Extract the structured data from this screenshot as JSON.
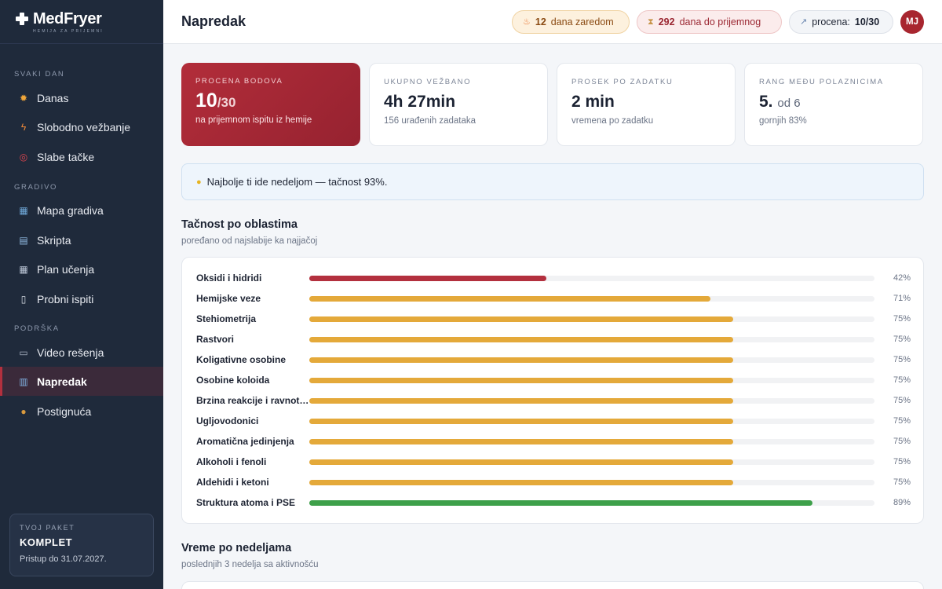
{
  "app": {
    "name": "MedFryer",
    "tagline": "Hemija za prijemni"
  },
  "sidebar": {
    "sections": [
      {
        "label": "Svaki dan",
        "items": [
          {
            "label": "Danas",
            "icon": "sun-icon"
          },
          {
            "label": "Slobodno vežbanje",
            "icon": "lightning-icon"
          },
          {
            "label": "Slabe tačke",
            "icon": "target-icon"
          }
        ]
      },
      {
        "label": "Gradivo",
        "items": [
          {
            "label": "Mapa gradiva",
            "icon": "map-icon"
          },
          {
            "label": "Skripta",
            "icon": "book-icon"
          },
          {
            "label": "Plan učenja",
            "icon": "calendar-icon"
          },
          {
            "label": "Probni ispiti",
            "icon": "document-icon"
          }
        ]
      },
      {
        "label": "Podrška",
        "items": [
          {
            "label": "Video rešenja",
            "icon": "video-icon"
          },
          {
            "label": "Napredak",
            "icon": "chart-icon",
            "active": true
          },
          {
            "label": "Postignuća",
            "icon": "medal-icon"
          }
        ]
      }
    ],
    "package": {
      "label": "Tvoj paket",
      "name": "KOMPLET",
      "access": "Pristup do 31.07.2027."
    }
  },
  "header": {
    "title": "Napredak",
    "streak": {
      "value": "12",
      "label": "dana zaredom"
    },
    "days_left": {
      "value": "292",
      "label": "dana do prijemnog"
    },
    "score": {
      "label": "procena:",
      "value": "10/30"
    },
    "avatar_initials": "MJ"
  },
  "stats": [
    {
      "label": "Procena bodova",
      "value": "10",
      "value_suffix": "/30",
      "sub": "na prijemnom ispitu iz hemije"
    },
    {
      "label": "Ukupno vežbano",
      "value": "4h 27min",
      "value_suffix": "",
      "sub": "156 urađenih zadataka"
    },
    {
      "label": "Prosek po zadatku",
      "value": "2 min",
      "value_suffix": "",
      "sub": "vremena po zadatku"
    },
    {
      "label": "Rang među polaznicima",
      "value": "5.",
      "value_suffix": "od 6",
      "sub": "gornjih 83%"
    }
  ],
  "tip": {
    "text": "Najbolje ti ide nedeljom — tačnost 93%.",
    "icon": "lightbulb-icon"
  },
  "accuracy": {
    "title": "Tačnost po oblastima",
    "subtitle": "poređano od najslabije ka najjačoj",
    "colors": {
      "weak": "#b3303e",
      "medium": "#e4a93a",
      "strong": "#3ea04a"
    },
    "rows": [
      {
        "name": "Oksidi i hidridi",
        "value": 42,
        "label": "42%",
        "level": "weak"
      },
      {
        "name": "Hemijske veze",
        "value": 71,
        "label": "71%",
        "level": "medium"
      },
      {
        "name": "Stehiometrija",
        "value": 75,
        "label": "75%",
        "level": "medium"
      },
      {
        "name": "Rastvori",
        "value": 75,
        "label": "75%",
        "level": "medium"
      },
      {
        "name": "Koligativne osobine",
        "value": 75,
        "label": "75%",
        "level": "medium"
      },
      {
        "name": "Osobine koloida",
        "value": 75,
        "label": "75%",
        "level": "medium"
      },
      {
        "name": "Brzina reakcije i ravnoteža",
        "value": 75,
        "label": "75%",
        "level": "medium"
      },
      {
        "name": "Ugljovodonici",
        "value": 75,
        "label": "75%",
        "level": "medium"
      },
      {
        "name": "Aromatična jedinjenja",
        "value": 75,
        "label": "75%",
        "level": "medium"
      },
      {
        "name": "Alkoholi i fenoli",
        "value": 75,
        "label": "75%",
        "level": "medium"
      },
      {
        "name": "Aldehidi i ketoni",
        "value": 75,
        "label": "75%",
        "level": "medium"
      },
      {
        "name": "Struktura atoma i PSE",
        "value": 89,
        "label": "89%",
        "level": "strong"
      }
    ]
  },
  "weekly": {
    "title": "Vreme po nedeljama",
    "subtitle": "poslednjih 3 nedelja sa aktivnošću"
  }
}
